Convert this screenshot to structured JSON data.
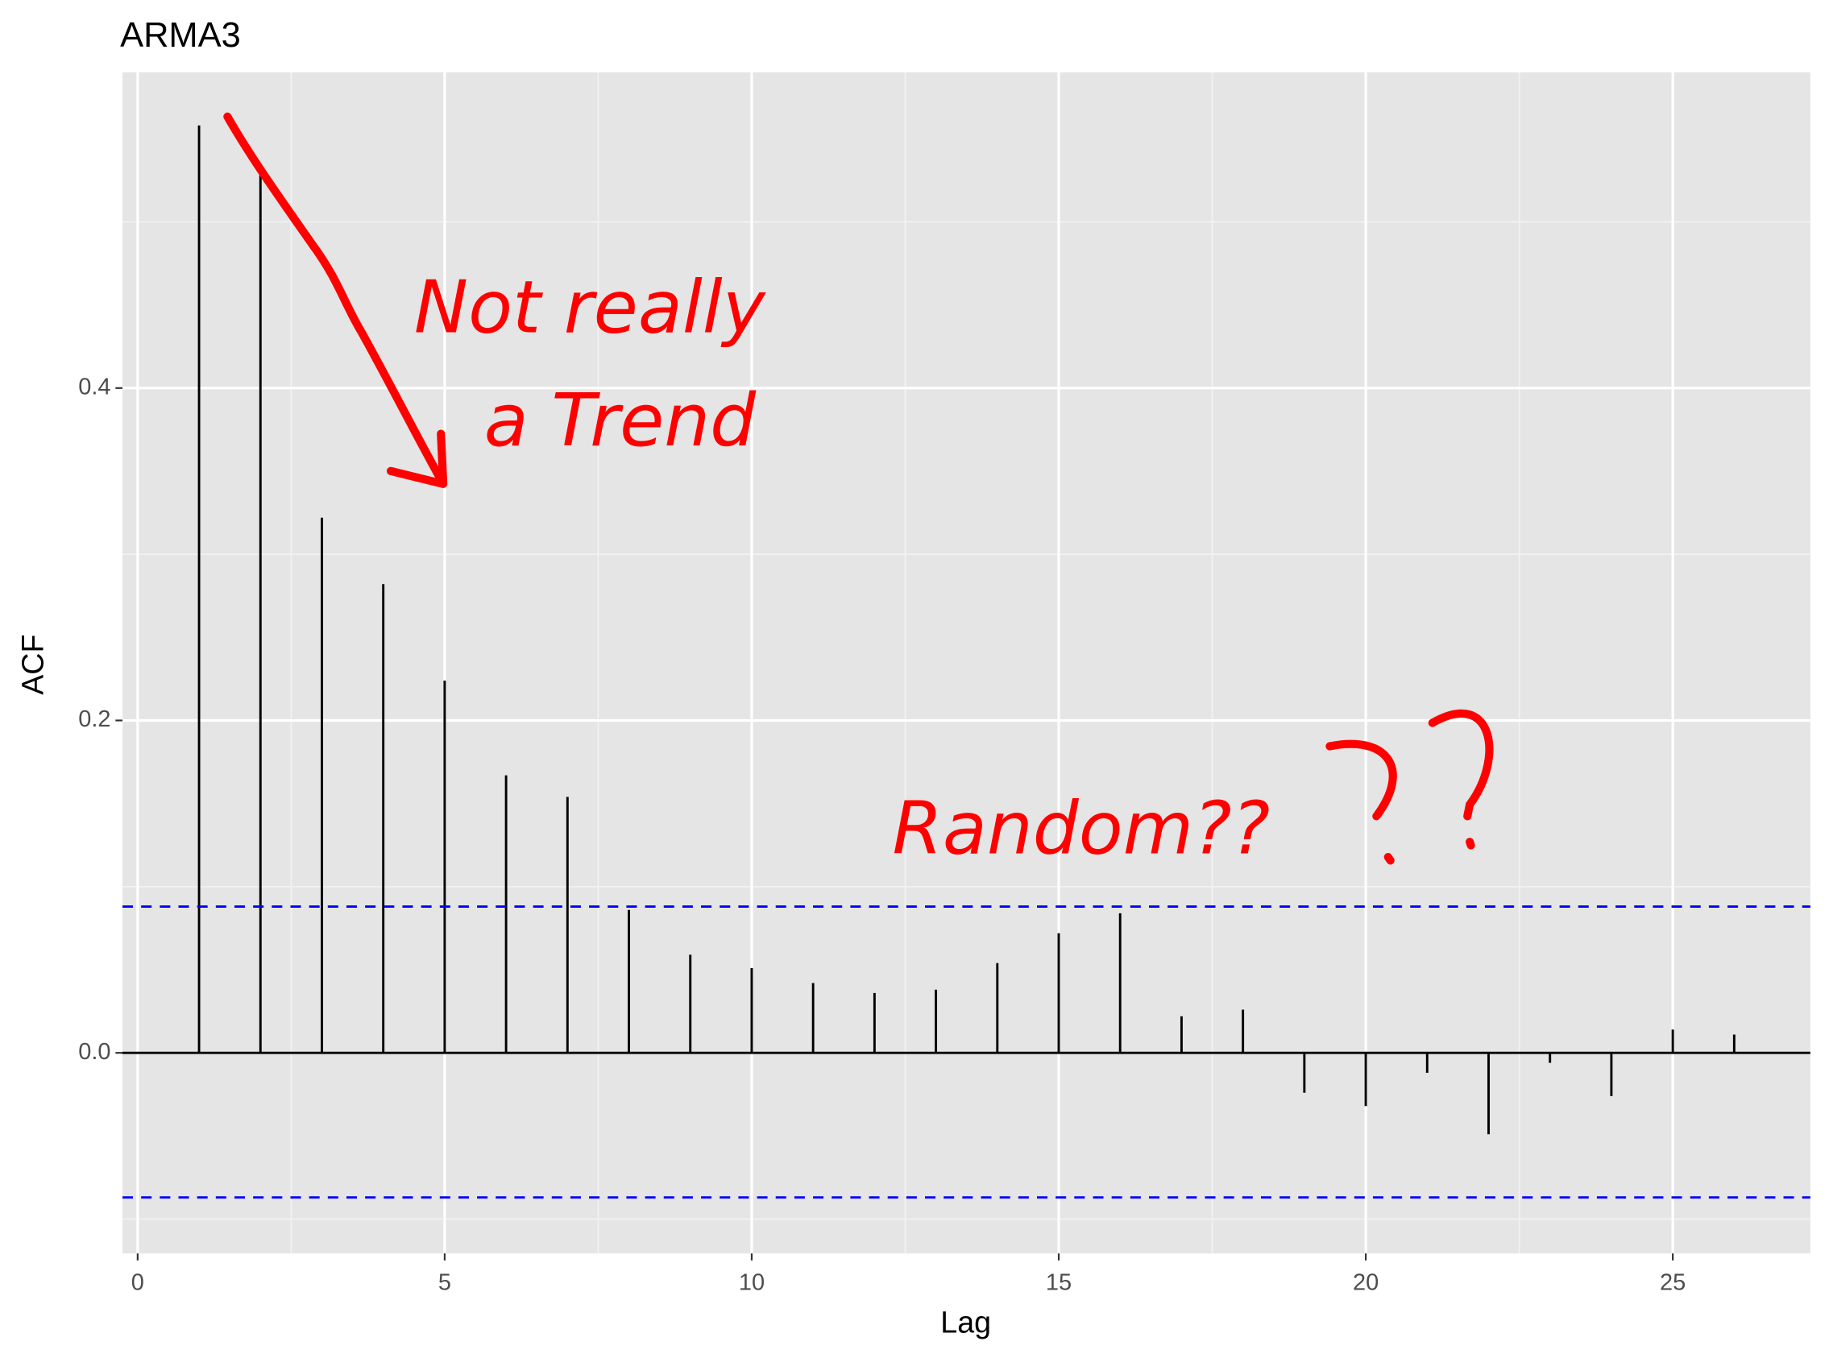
{
  "chart_data": {
    "type": "acf",
    "title": "ARMA3",
    "x_label": "Lag",
    "y_label": "ACF",
    "x": [
      1,
      2,
      3,
      4,
      5,
      6,
      7,
      8,
      9,
      10,
      11,
      12,
      13,
      14,
      15,
      16,
      17,
      18,
      19,
      20,
      21,
      22,
      23,
      24,
      25,
      26
    ],
    "values": [
      0.558,
      0.53,
      0.322,
      0.282,
      0.224,
      0.167,
      0.154,
      0.086,
      0.059,
      0.051,
      0.042,
      0.036,
      0.038,
      0.054,
      0.072,
      0.084,
      0.022,
      0.026,
      -0.024,
      -0.032,
      -0.012,
      -0.049,
      -0.006,
      -0.026,
      0.014,
      0.011
    ],
    "color": "#000000",
    "confidence_limits": [
      0.088,
      -0.087
    ],
    "confidence_color": "#0000ff",
    "xlim": [
      -0.247,
      27.24
    ],
    "ylim": [
      -0.1207,
      0.59
    ],
    "xticks": [
      0,
      5,
      10,
      15,
      20,
      25
    ],
    "yticks": [
      {
        "value": 0,
        "label": "0.0"
      },
      {
        "value": 0.2,
        "label": "0.2"
      },
      {
        "value": 0.4,
        "label": "0.4"
      }
    ],
    "grid": true,
    "annotations": [
      "Not really",
      "a Trend",
      "Random??"
    ],
    "annotation_color": "#ff0000"
  }
}
